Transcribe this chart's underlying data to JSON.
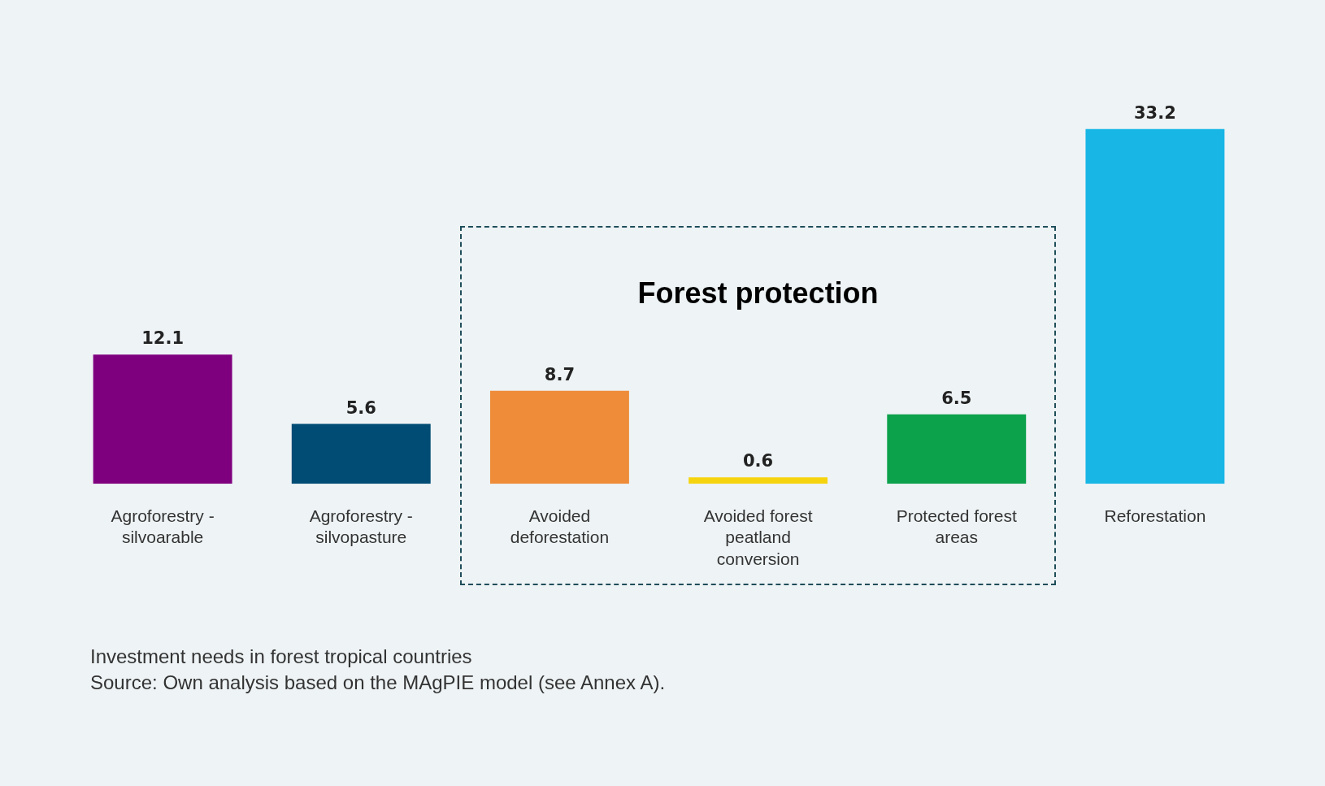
{
  "chart_data": {
    "type": "bar",
    "categories": [
      "Agroforestry - silvoarable",
      "Agroforestry - silvopasture",
      "Avoided deforestation",
      "Avoided forest peatland conversion",
      "Protected forest areas",
      "Reforestation"
    ],
    "values": [
      12.1,
      5.6,
      8.7,
      0.6,
      6.5,
      33.2
    ],
    "colors": [
      "#7f007f",
      "#004c74",
      "#ee8c3a",
      "#f5d40f",
      "#0ca14b",
      "#17b6e5"
    ],
    "data_labels": true,
    "grid": false,
    "legend": false,
    "tick_labels": "x",
    "annotations": [
      "Forest protection",
      "Investment needs in forest tropical countries",
      "Source: Own analysis based on the MAgPIE model (see Annex A)."
    ]
  }
}
